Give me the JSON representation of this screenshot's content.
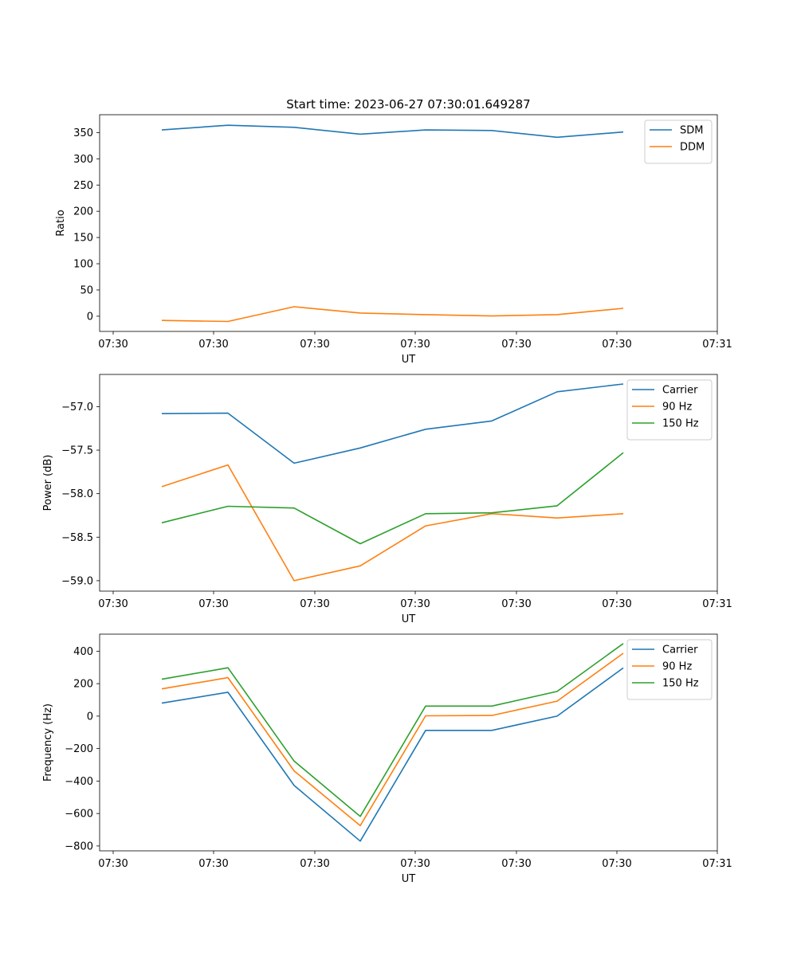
{
  "chart_data": [
    {
      "type": "line",
      "title": "Start time: 2023-06-27 07:30:01.649287",
      "xlabel": "UT",
      "ylabel": "Ratio",
      "x_tick_labels": [
        "07:30",
        "07:30",
        "07:30",
        "07:30",
        "07:30",
        "07:30",
        "07:30",
        "07:31"
      ],
      "y_ticks": [
        0,
        50,
        100,
        150,
        200,
        250,
        300,
        350
      ],
      "ylim": [
        -29,
        384
      ],
      "grid": false,
      "legend": "top-right",
      "series": [
        {
          "name": "SDM",
          "color": "#1f77b4",
          "values": [
            355,
            364,
            360,
            347,
            355,
            354,
            341,
            351
          ]
        },
        {
          "name": "DDM",
          "color": "#ff7f0e",
          "values": [
            -8,
            -10,
            18,
            6,
            3,
            0.5,
            3,
            15
          ]
        }
      ]
    },
    {
      "type": "line",
      "title": "",
      "xlabel": "UT",
      "ylabel": "Power (dB)",
      "x_tick_labels": [
        "07:30",
        "07:30",
        "07:30",
        "07:30",
        "07:30",
        "07:30",
        "07:30",
        "07:31"
      ],
      "y_ticks": [
        -59.0,
        -58.5,
        -58.0,
        -57.5,
        -57.0
      ],
      "y_tick_labels": [
        "−59.0",
        "−58.5",
        "−58.0",
        "−57.5",
        "−57.0"
      ],
      "ylim": [
        -59.12,
        -56.63
      ],
      "grid": false,
      "legend": "top-right",
      "series": [
        {
          "name": "Carrier",
          "color": "#1f77b4",
          "values": [
            -57.08,
            -57.075,
            -57.65,
            -57.475,
            -57.26,
            -57.165,
            -56.83,
            -56.74
          ]
        },
        {
          "name": "90 Hz",
          "color": "#ff7f0e",
          "values": [
            -57.92,
            -57.67,
            -59.0,
            -58.83,
            -58.37,
            -58.23,
            -58.28,
            -58.23
          ]
        },
        {
          "name": "150 Hz",
          "color": "#2ca02c",
          "values": [
            -58.335,
            -58.145,
            -58.165,
            -58.575,
            -58.23,
            -58.22,
            -58.14,
            -57.53
          ]
        }
      ]
    },
    {
      "type": "line",
      "title": "",
      "xlabel": "UT",
      "ylabel": "Frequency (Hz)",
      "x_tick_labels": [
        "07:30",
        "07:30",
        "07:30",
        "07:30",
        "07:30",
        "07:30",
        "07:30",
        "07:31"
      ],
      "y_ticks": [
        -800,
        -600,
        -400,
        -200,
        0,
        200,
        400
      ],
      "y_tick_labels": [
        "−800",
        "−600",
        "−400",
        "−200",
        "0",
        "200",
        "400"
      ],
      "ylim": [
        -830,
        505
      ],
      "grid": false,
      "legend": "top-right",
      "series": [
        {
          "name": "Carrier",
          "color": "#1f77b4",
          "values": [
            80,
            147,
            -427,
            -770,
            -88,
            -88,
            0,
            297
          ]
        },
        {
          "name": "90 Hz",
          "color": "#ff7f0e",
          "values": [
            168,
            237,
            -337,
            -675,
            2,
            4,
            92,
            387
          ]
        },
        {
          "name": "150 Hz",
          "color": "#2ca02c",
          "values": [
            227,
            298,
            -277,
            -618,
            62,
            62,
            152,
            447
          ]
        }
      ]
    }
  ]
}
